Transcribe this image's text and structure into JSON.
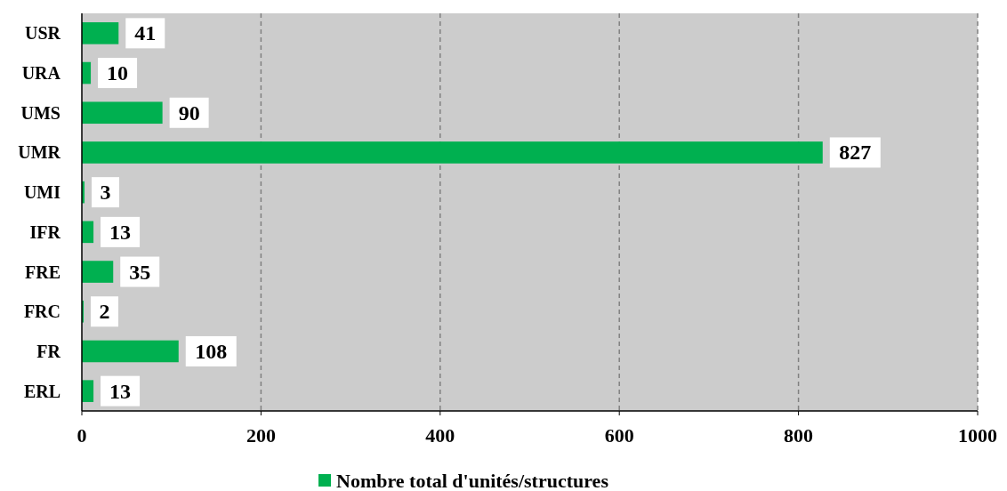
{
  "chart_data": {
    "type": "bar",
    "orientation": "horizontal",
    "categories": [
      "USR",
      "URA",
      "UMS",
      "UMR",
      "UMI",
      "IFR",
      "FRE",
      "FRC",
      "FR",
      "ERL"
    ],
    "series": [
      {
        "name": "Nombre total d'unités/structures",
        "color": "#00b050",
        "values": [
          41,
          10,
          90,
          827,
          3,
          13,
          35,
          2,
          108,
          13
        ]
      }
    ],
    "xlim": [
      0,
      1000
    ],
    "xticks": [
      0,
      200,
      400,
      600,
      800,
      1000
    ],
    "grid": "x",
    "legend": "bottom",
    "data_labels": true
  }
}
